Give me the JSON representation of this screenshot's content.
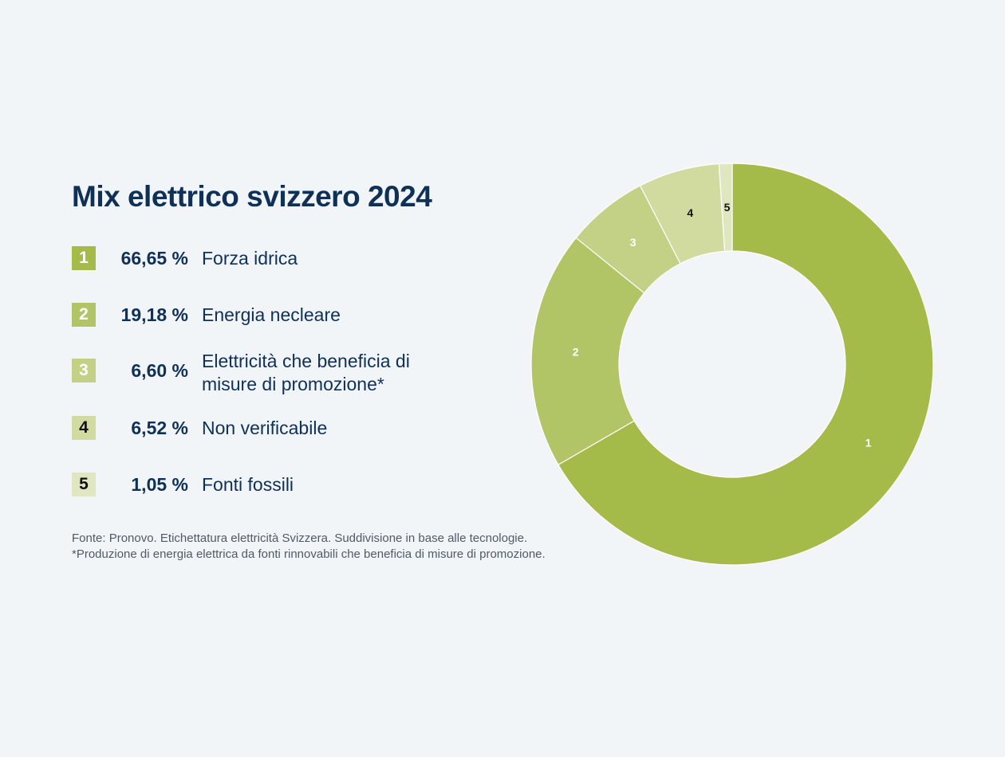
{
  "chart_data": {
    "type": "pie",
    "title": "Mix elettrico svizzero 2024",
    "donut": true,
    "categories": [
      "Forza idrica",
      "Energia necleare",
      "Elettricità che beneficia di misure di promozione*",
      "Non verificabile",
      "Fonti fossili"
    ],
    "slices": [
      {
        "num": "1",
        "value": 66.65,
        "pct_label": "66,65 %",
        "label_lines": [
          "Forza idrica"
        ],
        "color": "#a4bb4a",
        "text_color_badge": "#ffffff",
        "text_color_slice": "#ffffff"
      },
      {
        "num": "2",
        "value": 19.18,
        "pct_label": "19,18 %",
        "label_lines": [
          "Energia necleare"
        ],
        "color": "#b1c466",
        "text_color_badge": "#ffffff",
        "text_color_slice": "#ffffff"
      },
      {
        "num": "3",
        "value": 6.6,
        "pct_label": "6,60 %",
        "label_lines": [
          "Elettricità che beneficia di",
          "misure di promozione*"
        ],
        "color": "#c2d186",
        "text_color_badge": "#ffffff",
        "text_color_slice": "#ffffff"
      },
      {
        "num": "4",
        "value": 6.52,
        "pct_label": "6,52 %",
        "label_lines": [
          "Non verificabile"
        ],
        "color": "#d1dba0",
        "text_color_badge": "#111111",
        "text_color_slice": "#111111"
      },
      {
        "num": "5",
        "value": 1.05,
        "pct_label": "1,05 %",
        "label_lines": [
          "Fonti fossili"
        ],
        "color": "#dfe6c0",
        "text_color_badge": "#111111",
        "text_color_slice": "#111111"
      }
    ]
  },
  "footnotes": {
    "source": "Fonte: Pronovo. Etichettatura elettricità Svizzera. Suddivisione in base alle tecnologie.",
    "note": "*Produzione di energia elettrica da fonti rinnovabili che beneficia di misure di promozione."
  }
}
